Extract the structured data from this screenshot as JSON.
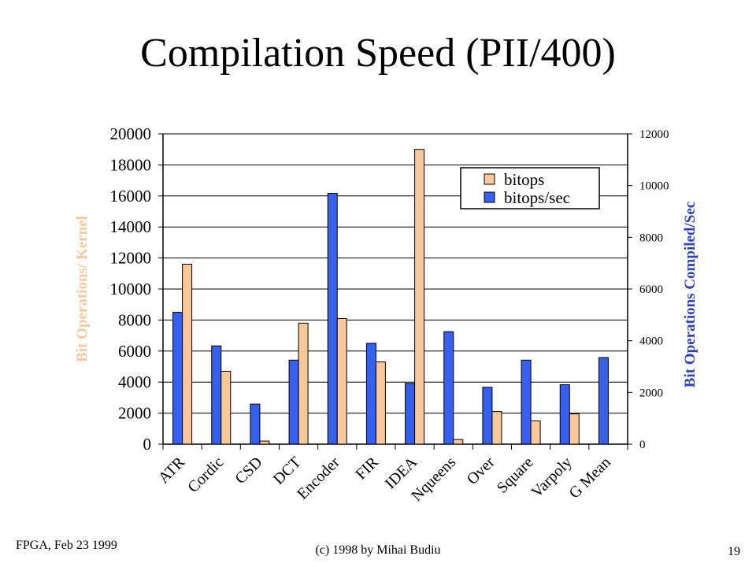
{
  "slide": {
    "title": "Compilation Speed (PII/400)",
    "footer_left": "FPGA, Feb 23 1999",
    "footer_center": "(c) 1998 by Mihai Budiu",
    "page_number": "19"
  },
  "chart_data": {
    "type": "bar",
    "categories": [
      "ATR",
      "Cordic",
      "CSD",
      "DCT",
      "Encoder",
      "FIR",
      "IDEA",
      "Nqueens",
      "Over",
      "Square",
      "Varpoly",
      "G Mean"
    ],
    "series": [
      {
        "name": "bitops",
        "axis": "left",
        "color": "#F8C898",
        "values": [
          11600,
          4700,
          200,
          7800,
          8100,
          5300,
          19000,
          300,
          2100,
          1500,
          1950,
          null
        ]
      },
      {
        "name": "bitops/sec",
        "axis": "right",
        "color": "#3560F0",
        "values": [
          5100,
          3800,
          1550,
          3250,
          9700,
          3900,
          2350,
          4350,
          2200,
          3250,
          2300,
          3350
        ]
      }
    ],
    "ylabel": "Bit Operations/ Kernel",
    "ylabel_color": "#F8C898",
    "y2label": "Bit Operations Compiled/Sec",
    "y2label_color": "#2A40C8",
    "ylim": [
      0,
      20000
    ],
    "y2lim": [
      0,
      12000
    ],
    "yticks": [
      "0",
      "2000",
      "4000",
      "6000",
      "8000",
      "10000",
      "12000",
      "14000",
      "16000",
      "18000",
      "20000"
    ],
    "y2ticks": [
      "0",
      "2000",
      "4000",
      "6000",
      "8000",
      "10000",
      "12000"
    ],
    "grid": true,
    "legend": "top-right"
  }
}
